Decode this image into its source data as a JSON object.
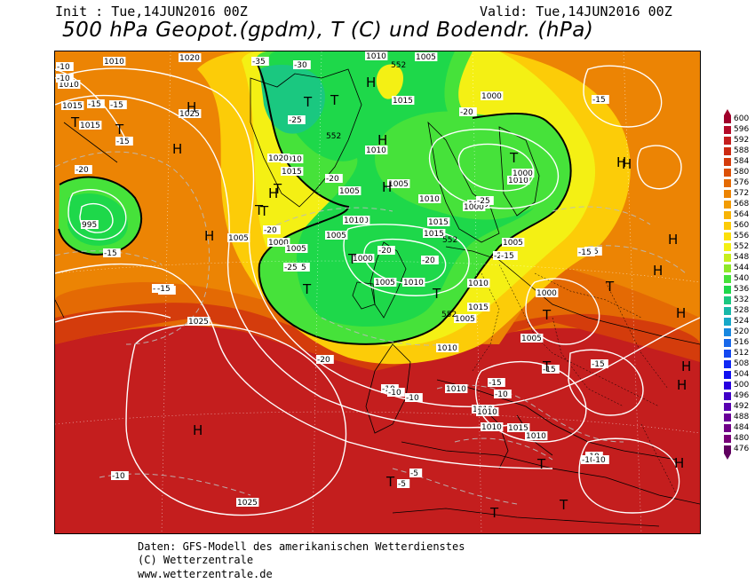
{
  "header": {
    "init": "Init : Tue,14JUN2016 00Z",
    "valid": "Valid: Tue,14JUN2016 00Z",
    "title": "500 hPa Geopot.(gpdm), T (C) und Bodendr. (hPa)"
  },
  "footer": {
    "line1": "Daten: GFS-Modell des amerikanischen Wetterdienstes",
    "line2": "(C) Wetterzentrale",
    "line3": "www.wetterzentrale.de"
  },
  "legend": {
    "values": [
      "600",
      "596",
      "592",
      "588",
      "584",
      "580",
      "576",
      "572",
      "568",
      "564",
      "560",
      "556",
      "552",
      "548",
      "544",
      "540",
      "536",
      "532",
      "528",
      "524",
      "520",
      "516",
      "512",
      "508",
      "504",
      "500",
      "496",
      "492",
      "488",
      "484",
      "480",
      "476"
    ],
    "colors": [
      "#a0002a",
      "#b40a28",
      "#c41e1e",
      "#cc2a12",
      "#d43c0c",
      "#dc5006",
      "#e46a04",
      "#ec8404",
      "#f29c04",
      "#f8b406",
      "#fccc08",
      "#fce00a",
      "#f4f014",
      "#c8ee1e",
      "#8ee828",
      "#46e23a",
      "#1ed84a",
      "#1ac880",
      "#18b8a8",
      "#18a8c8",
      "#1888e0",
      "#1868ea",
      "#1448f0",
      "#1028f4",
      "#1010f0",
      "#2800e0",
      "#4000c8",
      "#5800b0",
      "#680098",
      "#700088",
      "#780078",
      "#600060"
    ]
  },
  "map": {
    "pressure_labels": [
      "1010",
      "1010",
      "1015",
      "1015",
      "1020",
      "1025",
      "1005",
      "1000",
      "1005",
      "1010",
      "1015",
      "1020",
      "1010",
      "1015",
      "1005",
      "1000",
      "1010",
      "1005",
      "1005",
      "1000",
      "1005",
      "1000",
      "1005",
      "1010",
      "1015",
      "1015",
      "1010",
      "1005",
      "1000",
      "1010",
      "1005",
      "1010",
      "1015",
      "1010",
      "1005",
      "1010",
      "1000",
      "1000",
      "1005",
      "1010",
      "1015",
      "1010",
      "1025",
      "1025",
      "1010",
      "1010",
      "995",
      "1010"
    ],
    "temp_labels": [
      "-10",
      "-10",
      "-15",
      "-15",
      "-15",
      "-20",
      "-15",
      "-20",
      "-10",
      "-10",
      "-15",
      "-35",
      "-30",
      "-25",
      "-20",
      "-25",
      "-25",
      "-20",
      "-20",
      "-20",
      "-15",
      "-15",
      "-15",
      "-10",
      "-15",
      "-10",
      "-10",
      "-10",
      "-10",
      "-5",
      "-5",
      "-10",
      "-10",
      "-10",
      "-15",
      "-15",
      "-20",
      "-25",
      "-15",
      "-20"
    ],
    "contour_labels": [
      "552",
      "552",
      "552",
      "552"
    ],
    "highs": [
      "H",
      "H",
      "H",
      "H",
      "H",
      "H",
      "H",
      "H",
      "H",
      "H",
      "H",
      "H",
      "H",
      "H",
      "H",
      "H"
    ],
    "lows": [
      "T",
      "T",
      "T",
      "T",
      "T",
      "T",
      "T",
      "T",
      "T",
      "T",
      "T",
      "T",
      "T",
      "T",
      "T",
      "T",
      "T",
      "T"
    ]
  }
}
